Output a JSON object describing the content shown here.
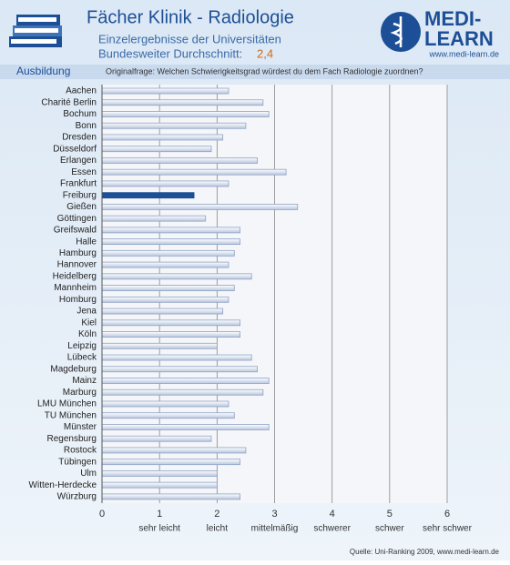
{
  "header": {
    "title": "Fächer Klinik - Radiologie",
    "subtitle": "Einzelergebnisse der Universitäten",
    "average_label": "Bundesweiter Durchschnitt:",
    "average": "2,4",
    "logo_top": "MEDI-",
    "logo_bottom": "LEARN",
    "logo_url": "www.medi-learn.de",
    "section": "Ausbildung",
    "question": "Originalfrage: Welchen Schwierigkeitsgrad würdest du dem Fach Radiologie zuordnen?"
  },
  "chart_data": {
    "type": "hbar",
    "categories": [
      "Aachen",
      "Charité Berlin",
      "Bochum",
      "Bonn",
      "Dresden",
      "Düsseldorf",
      "Erlangen",
      "Essen",
      "Frankfurt",
      "Freiburg",
      "Gießen",
      "Göttingen",
      "Greifswald",
      "Halle",
      "Hamburg",
      "Hannover",
      "Heidelberg",
      "Mannheim",
      "Homburg",
      "Jena",
      "Kiel",
      "Köln",
      "Leipzig",
      "Lübeck",
      "Magdeburg",
      "Mainz",
      "Marburg",
      "LMU München",
      "TU München",
      "Münster",
      "Regensburg",
      "Rostock",
      "Tübingen",
      "Ulm",
      "Witten-Herdecke",
      "Würzburg"
    ],
    "values": [
      2.2,
      2.8,
      2.9,
      2.5,
      2.1,
      1.9,
      2.7,
      3.2,
      2.2,
      1.6,
      3.4,
      1.8,
      2.4,
      2.4,
      2.3,
      2.2,
      2.6,
      2.3,
      2.2,
      2.1,
      2.4,
      2.4,
      2.0,
      2.6,
      2.7,
      2.9,
      2.8,
      2.2,
      2.3,
      2.9,
      1.9,
      2.5,
      2.4,
      2.0,
      2.0,
      2.4
    ],
    "color": "#dfe6f2",
    "highlight": "Freiburg",
    "highlight_color": "#1d4f96",
    "xlim": [
      0,
      6
    ],
    "xticks": [
      0,
      1,
      2,
      3,
      4,
      5,
      6
    ],
    "scale_labels": [
      "sehr leicht",
      "leicht",
      "mittelmäßig",
      "schwerer",
      "schwer",
      "sehr schwer"
    ],
    "grid": true
  },
  "footer": {
    "source": "Quelle: Uni-Ranking 2009, www.medi-learn.de"
  }
}
